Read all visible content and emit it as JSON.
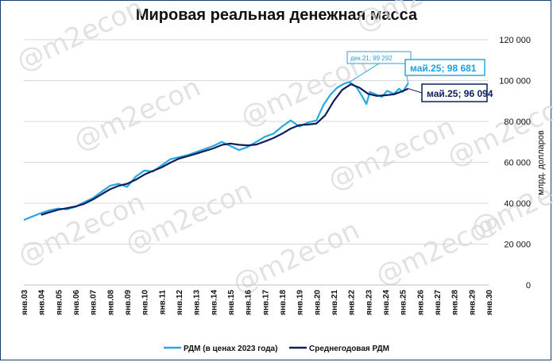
{
  "chart_data": {
    "type": "line",
    "title": "Мировая реальная денежная масса",
    "ylabel": "млрд. долларов",
    "ylim": [
      0,
      120000
    ],
    "yticks": [
      "0",
      "20 000",
      "40 000",
      "60 000",
      "80 000",
      "100 000",
      "120 000"
    ],
    "xlabels": [
      "янв.03",
      "янв.04",
      "янв.05",
      "янв.06",
      "янв.07",
      "янв.08",
      "янв.09",
      "янв.10",
      "янв.11",
      "янв.12",
      "янв.13",
      "янв.14",
      "янв.15",
      "янв.16",
      "янв.17",
      "янв.18",
      "янв.19",
      "янв.20",
      "янв.21",
      "янв.22",
      "янв.23",
      "янв.24",
      "янв.25",
      "янв.26",
      "янв.27",
      "янв.28",
      "янв.29",
      "янв.30"
    ],
    "grid": "horizontal",
    "legend_position": "bottom",
    "watermark": "@m2econ",
    "colors": {
      "rdm": "#29a8e0",
      "avg": "#0f1f5c"
    },
    "series": [
      {
        "name": "РДМ (в ценах 2023 года)",
        "points": [
          [
            2003.0,
            31800
          ],
          [
            2003.5,
            33500
          ],
          [
            2004.0,
            35200
          ],
          [
            2004.5,
            36600
          ],
          [
            2005.0,
            37400
          ],
          [
            2005.5,
            37000
          ],
          [
            2006.0,
            38200
          ],
          [
            2006.5,
            40500
          ],
          [
            2007.0,
            42500
          ],
          [
            2007.5,
            45500
          ],
          [
            2008.0,
            48500
          ],
          [
            2008.5,
            49500
          ],
          [
            2009.0,
            48000
          ],
          [
            2009.5,
            53000
          ],
          [
            2010.0,
            56000
          ],
          [
            2010.5,
            55500
          ],
          [
            2011.0,
            58500
          ],
          [
            2011.5,
            61500
          ],
          [
            2012.0,
            62500
          ],
          [
            2012.5,
            63500
          ],
          [
            2013.0,
            65000
          ],
          [
            2013.5,
            66500
          ],
          [
            2014.0,
            68000
          ],
          [
            2014.5,
            70000
          ],
          [
            2015.0,
            68000
          ],
          [
            2015.5,
            66000
          ],
          [
            2016.0,
            67500
          ],
          [
            2016.5,
            70000
          ],
          [
            2017.0,
            72500
          ],
          [
            2017.5,
            74000
          ],
          [
            2018.0,
            77500
          ],
          [
            2018.5,
            80500
          ],
          [
            2019.0,
            77500
          ],
          [
            2019.5,
            79500
          ],
          [
            2020.0,
            80500
          ],
          [
            2020.4,
            88000
          ],
          [
            2020.8,
            93000
          ],
          [
            2021.2,
            96500
          ],
          [
            2021.6,
            98500
          ],
          [
            2021.92,
            99292
          ],
          [
            2022.3,
            97000
          ],
          [
            2022.6,
            93000
          ],
          [
            2022.9,
            88500
          ],
          [
            2023.1,
            94500
          ],
          [
            2023.5,
            93000
          ],
          [
            2023.8,
            92000
          ],
          [
            2024.1,
            95000
          ],
          [
            2024.5,
            93500
          ],
          [
            2024.8,
            96000
          ],
          [
            2025.0,
            94500
          ],
          [
            2025.33,
            98681
          ]
        ]
      },
      {
        "name": "Среднегодовая РДМ",
        "points": [
          [
            2004.0,
            34300
          ],
          [
            2004.5,
            35600
          ],
          [
            2005.0,
            36800
          ],
          [
            2005.5,
            37600
          ],
          [
            2006.0,
            38400
          ],
          [
            2006.5,
            39700
          ],
          [
            2007.0,
            41800
          ],
          [
            2007.5,
            44300
          ],
          [
            2008.0,
            46800
          ],
          [
            2008.5,
            48500
          ],
          [
            2009.0,
            49500
          ],
          [
            2009.5,
            51500
          ],
          [
            2010.0,
            54000
          ],
          [
            2010.5,
            55800
          ],
          [
            2011.0,
            57500
          ],
          [
            2011.5,
            59800
          ],
          [
            2012.0,
            61800
          ],
          [
            2012.5,
            63000
          ],
          [
            2013.0,
            64200
          ],
          [
            2013.5,
            65500
          ],
          [
            2014.0,
            66800
          ],
          [
            2014.5,
            68500
          ],
          [
            2015.0,
            69200
          ],
          [
            2015.5,
            68600
          ],
          [
            2016.0,
            68300
          ],
          [
            2016.5,
            68700
          ],
          [
            2017.0,
            70200
          ],
          [
            2017.5,
            71900
          ],
          [
            2018.0,
            74000
          ],
          [
            2018.5,
            76500
          ],
          [
            2019.0,
            78200
          ],
          [
            2019.5,
            78500
          ],
          [
            2020.0,
            79000
          ],
          [
            2020.5,
            83000
          ],
          [
            2021.0,
            90000
          ],
          [
            2021.5,
            95500
          ],
          [
            2022.0,
            98200
          ],
          [
            2022.5,
            96500
          ],
          [
            2023.0,
            93500
          ],
          [
            2023.5,
            92500
          ],
          [
            2024.0,
            92800
          ],
          [
            2024.5,
            93300
          ],
          [
            2025.0,
            94800
          ],
          [
            2025.33,
            96094
          ]
        ]
      }
    ],
    "annotations": [
      {
        "label": "дек.21; 99 292",
        "x": 2021.92,
        "y": 99292,
        "series": 0
      },
      {
        "label": "май.25;  98 681",
        "x": 2025.33,
        "y": 98681,
        "series": 0
      },
      {
        "label": "май.25; 96 094",
        "x": 2025.33,
        "y": 96094,
        "series": 1
      }
    ]
  }
}
